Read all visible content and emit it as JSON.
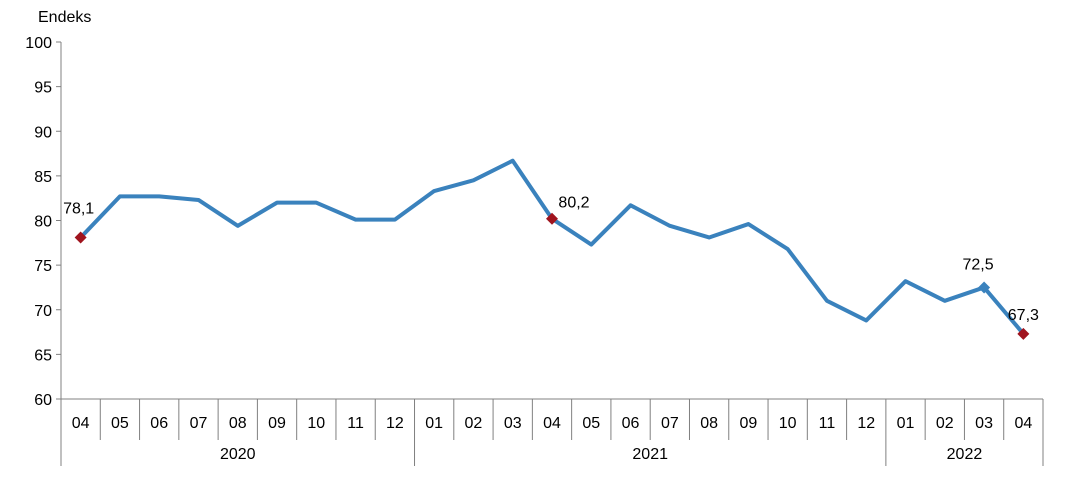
{
  "chart_data": {
    "type": "line",
    "ylabel": "Endeks",
    "ylim": [
      60,
      100
    ],
    "yticks": [
      60,
      65,
      70,
      75,
      80,
      85,
      90,
      95,
      100
    ],
    "categories": [
      "04",
      "05",
      "06",
      "07",
      "08",
      "09",
      "10",
      "11",
      "12",
      "01",
      "02",
      "03",
      "04",
      "05",
      "06",
      "07",
      "08",
      "09",
      "10",
      "11",
      "12",
      "01",
      "02",
      "03",
      "04"
    ],
    "years": [
      {
        "label": "2020",
        "count": 9
      },
      {
        "label": "2021",
        "count": 12
      },
      {
        "label": "2022",
        "count": 4
      }
    ],
    "series": [
      {
        "values": [
          78.1,
          82.7,
          82.7,
          82.3,
          79.4,
          82.0,
          82.0,
          80.1,
          80.1,
          83.3,
          84.5,
          86.7,
          80.2,
          77.3,
          81.7,
          79.4,
          78.1,
          79.6,
          76.8,
          71.0,
          68.8,
          73.2,
          71.0,
          72.5,
          67.3
        ],
        "color": "#3a82bd"
      }
    ],
    "markers": [
      {
        "index": 0,
        "label": "78,1",
        "color": "#a0141e",
        "shape": "diamond"
      },
      {
        "index": 12,
        "label": "80,2",
        "color": "#a0141e",
        "shape": "diamond"
      },
      {
        "index": 23,
        "label": "72,5",
        "color": "#3a82bd",
        "shape": "diamond"
      },
      {
        "index": 24,
        "label": "67,3",
        "color": "#a0141e",
        "shape": "diamond"
      }
    ],
    "grid": false,
    "legend": "none"
  }
}
